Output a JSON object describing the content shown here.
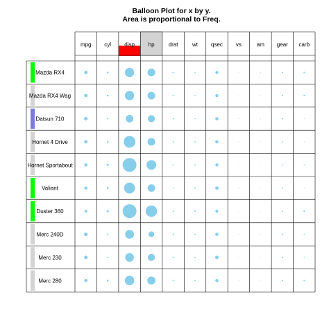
{
  "chart_data": {
    "type": "balloon",
    "title": "Balloon Plot for x by y.",
    "subtitle": "Area is proportional to Freq.",
    "columns": [
      "mpg",
      "cyl",
      "disp",
      "hp",
      "drat",
      "wt",
      "qsec",
      "vs",
      "am",
      "gear",
      "carb"
    ],
    "rows": [
      "Mazda RX4",
      "Mazda RX4 Wag",
      "Datsun 710",
      "Hornet 4 Drive",
      "Hornet Sportabout",
      "Valiant",
      "Duster 360",
      "Merc 240D",
      "Merc 230",
      "Merc 280"
    ],
    "values": [
      [
        21.0,
        6,
        160.0,
        110,
        3.9,
        2.62,
        16.46,
        0,
        1,
        4,
        4
      ],
      [
        21.0,
        6,
        160.0,
        110,
        3.9,
        2.875,
        17.02,
        0,
        1,
        4,
        4
      ],
      [
        22.8,
        4,
        108.0,
        93,
        3.85,
        2.32,
        18.61,
        1,
        1,
        4,
        1
      ],
      [
        21.4,
        6,
        258.0,
        110,
        3.08,
        3.215,
        19.44,
        1,
        0,
        3,
        1
      ],
      [
        18.7,
        8,
        360.0,
        175,
        3.15,
        3.44,
        17.02,
        0,
        0,
        3,
        2
      ],
      [
        18.1,
        6,
        225.0,
        105,
        2.76,
        3.46,
        20.22,
        1,
        0,
        3,
        1
      ],
      [
        14.3,
        8,
        360.0,
        245,
        3.21,
        3.57,
        15.84,
        0,
        0,
        3,
        4
      ],
      [
        24.4,
        4,
        146.7,
        62,
        3.69,
        3.19,
        20.0,
        1,
        0,
        4,
        2
      ],
      [
        22.8,
        4,
        140.8,
        95,
        3.92,
        3.15,
        22.9,
        1,
        0,
        4,
        2
      ],
      [
        19.2,
        6,
        167.6,
        123,
        3.92,
        3.44,
        18.3,
        1,
        0,
        4,
        4
      ]
    ],
    "balloon_color": "#87CEEB",
    "highlight_colors": {
      "red": "#FF0000",
      "green": "#00FF00",
      "blue": "#7B7BE0",
      "gray": "#D3D3D3"
    },
    "column_bars": [
      {
        "level": 0.0,
        "color": "#D3D3D3"
      },
      {
        "level": 0.0,
        "color": "#D3D3D3"
      },
      {
        "level": 0.42,
        "color": "#FF0000"
      },
      {
        "level": 1.0,
        "color": "#D3D3D3"
      },
      {
        "level": 0.0,
        "color": "#D3D3D3"
      },
      {
        "level": 0.0,
        "color": "#D3D3D3"
      },
      {
        "level": 0.0,
        "color": "#D3D3D3"
      },
      {
        "level": 0.0,
        "color": "#D3D3D3"
      },
      {
        "level": 0.0,
        "color": "#D3D3D3"
      },
      {
        "level": 0.0,
        "color": "#D3D3D3"
      },
      {
        "level": 0.0,
        "color": "#D3D3D3"
      }
    ],
    "row_bars": [
      {
        "level": 0.07,
        "color": "#00FF00"
      },
      {
        "level": 0.14,
        "color": "#D3D3D3"
      },
      {
        "level": 0.14,
        "color": "#7B7BE0"
      },
      {
        "level": 0.29,
        "color": "#D3D3D3"
      },
      {
        "level": 0.4,
        "color": "#D3D3D3"
      },
      {
        "level": 0.43,
        "color": "#00FF00"
      },
      {
        "level": 0.55,
        "color": "#00FF00"
      },
      {
        "level": 0.7,
        "color": "#D3D3D3"
      },
      {
        "level": 0.85,
        "color": "#D3D3D3"
      },
      {
        "level": 1.0,
        "color": "#D3D3D3"
      }
    ],
    "grid": true,
    "legend": "none"
  }
}
